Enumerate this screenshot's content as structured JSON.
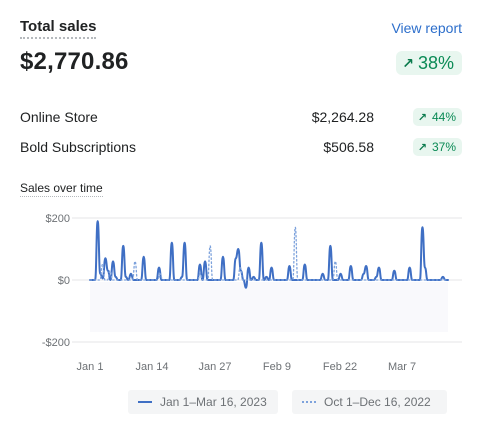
{
  "header": {
    "title": "Total sales",
    "view_report": "View report",
    "total": "$2,770.86",
    "change": "38%"
  },
  "channels": [
    {
      "label": "Online Store",
      "amount": "$2,264.28",
      "change": "44%"
    },
    {
      "label": "Bold Subscriptions",
      "amount": "$506.58",
      "change": "37%"
    }
  ],
  "colors": {
    "current": "#3f6fc4",
    "previous": "#7da2dc",
    "positive": "#0a8a55"
  },
  "icons": {
    "change": "arrow-up-right-icon"
  },
  "chart_data": {
    "type": "line",
    "title": "Sales over time",
    "ylim": [
      -200,
      200
    ],
    "y_ticks": [
      "$200",
      "$0",
      "-$200"
    ],
    "x_ticks": [
      "Jan 1",
      "Jan 14",
      "Jan 27",
      "Feb 9",
      "Feb 22",
      "Mar 7"
    ],
    "grid": true,
    "legend_position": "bottom",
    "series": [
      {
        "name": "Jan 1–Mar 16, 2023",
        "style": "solid",
        "values": [
          0,
          0,
          0,
          190,
          20,
          5,
          70,
          30,
          0,
          60,
          10,
          0,
          0,
          110,
          10,
          0,
          20,
          0,
          0,
          0,
          0,
          75,
          0,
          0,
          0,
          0,
          0,
          40,
          0,
          0,
          0,
          0,
          120,
          0,
          0,
          0,
          10,
          120,
          0,
          0,
          0,
          0,
          0,
          50,
          0,
          60,
          0,
          0,
          0,
          0,
          0,
          0,
          75,
          0,
          0,
          0,
          0,
          70,
          100,
          30,
          0,
          -25,
          40,
          0,
          10,
          0,
          0,
          120,
          0,
          10,
          0,
          40,
          0,
          0,
          0,
          0,
          0,
          0,
          45,
          0,
          0,
          0,
          0,
          0,
          50,
          0,
          0,
          0,
          0,
          0,
          0,
          20,
          0,
          0,
          110,
          0,
          0,
          0,
          20,
          0,
          0,
          0,
          45,
          0,
          0,
          0,
          0,
          20,
          45,
          0,
          0,
          0,
          10,
          40,
          0,
          0,
          0,
          0,
          0,
          30,
          0,
          0,
          0,
          0,
          0,
          40,
          0,
          0,
          0,
          0,
          170,
          40,
          0,
          0,
          0,
          0,
          0,
          0,
          10,
          0,
          0
        ]
      },
      {
        "name": "Oct 1–Dec 16, 2022",
        "style": "dotted",
        "values": [
          0,
          0,
          0,
          0,
          0,
          50,
          0,
          0,
          30,
          0,
          0,
          0,
          0,
          0,
          0,
          0,
          0,
          0,
          60,
          0,
          0,
          0,
          0,
          0,
          0,
          0,
          0,
          0,
          20,
          0,
          0,
          0,
          0,
          0,
          0,
          0,
          0,
          0,
          0,
          0,
          0,
          0,
          0,
          0,
          20,
          0,
          0,
          0,
          110,
          0,
          0,
          0,
          0,
          0,
          0,
          0,
          0,
          0,
          0,
          0,
          40,
          0,
          0,
          0,
          0,
          0,
          0,
          0,
          0,
          0,
          0,
          0,
          0,
          0,
          0,
          0,
          0,
          0,
          0,
          0,
          0,
          0,
          170,
          0,
          0,
          0,
          0,
          0,
          0,
          0,
          0,
          0,
          0,
          0,
          0,
          0,
          0,
          0,
          60,
          0,
          0,
          0,
          0,
          0,
          0,
          0,
          0,
          0,
          0,
          0,
          0,
          0,
          0,
          0,
          0,
          0,
          0,
          0,
          0,
          0,
          0,
          0,
          0,
          0,
          0,
          0,
          0,
          0,
          0,
          0,
          0,
          0,
          0,
          0,
          0,
          0,
          0,
          0,
          0,
          0,
          0,
          0,
          0,
          0
        ]
      }
    ]
  }
}
